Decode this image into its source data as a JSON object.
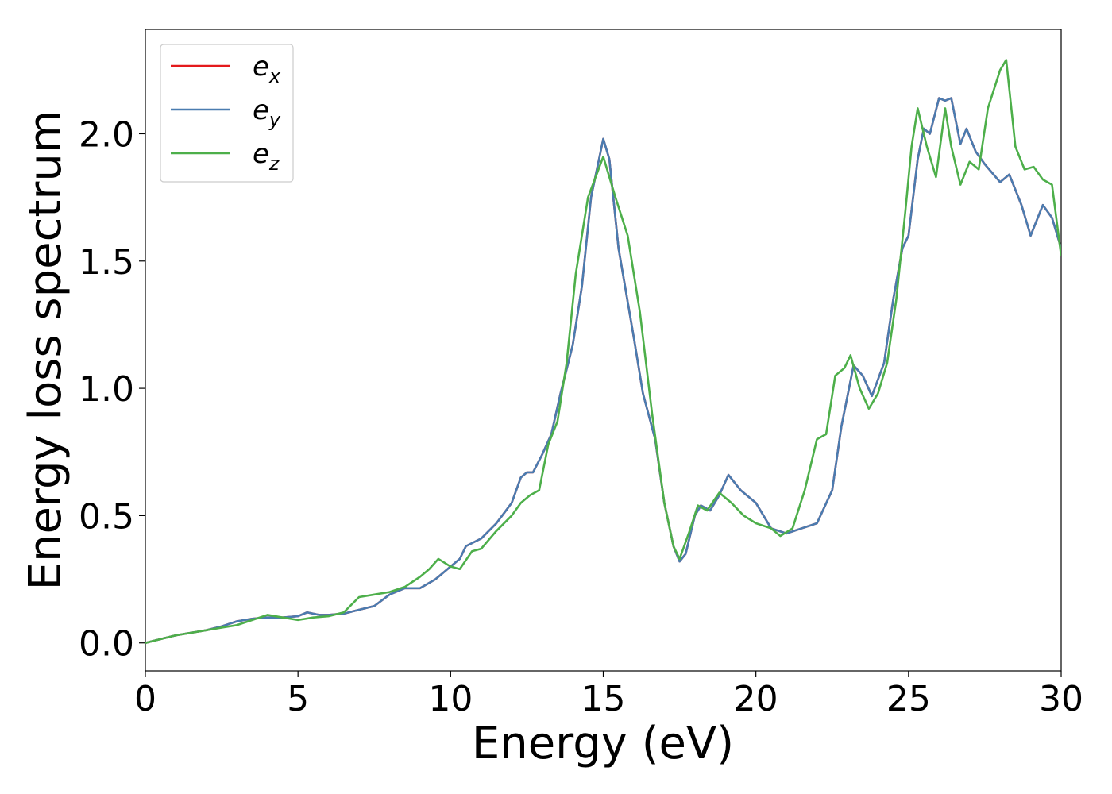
{
  "chart_data": {
    "type": "line",
    "xlabel": "Energy (eV)",
    "ylabel": "Energy loss spectrum",
    "xlim": [
      0,
      30
    ],
    "ylim": [
      -0.11,
      2.41
    ],
    "xticks": [
      0,
      5,
      10,
      15,
      20,
      25,
      30
    ],
    "yticks": [
      {
        "value": 0,
        "label": "0.0"
      },
      {
        "value": 0.5,
        "label": "0.5"
      },
      {
        "value": 1,
        "label": "1.0"
      },
      {
        "value": 1.5,
        "label": "1.5"
      },
      {
        "value": 2,
        "label": "2.0"
      }
    ],
    "legend": "upper left",
    "series": [
      {
        "name": "e_x",
        "color": "#e41a1c",
        "x": [
          0,
          0.5,
          1,
          1.5,
          2,
          2.5,
          3,
          3.5,
          4,
          4.5,
          5,
          5.3,
          5.7,
          6,
          6.5,
          7,
          7.5,
          8,
          8.5,
          9,
          9.5,
          10,
          10.3,
          10.5,
          11,
          11.5,
          12,
          12.3,
          12.5,
          12.7,
          13,
          13.3,
          13.6,
          14,
          14.3,
          14.6,
          15,
          15.2,
          15.5,
          16,
          16.3,
          16.7,
          17,
          17.3,
          17.5,
          17.7,
          18,
          18.2,
          18.5,
          18.8,
          19.1,
          19.5,
          20,
          20.5,
          21,
          21.5,
          22,
          22.5,
          22.8,
          23.2,
          23.5,
          23.8,
          24.2,
          24.5,
          24.8,
          25,
          25.3,
          25.5,
          25.7,
          26,
          26.2,
          26.4,
          26.7,
          26.9,
          27.2,
          27.5,
          28,
          28.3,
          28.7,
          29,
          29.4,
          29.7,
          30
        ],
        "values": [
          0,
          0.015,
          0.03,
          0.04,
          0.05,
          0.065,
          0.085,
          0.095,
          0.1,
          0.1,
          0.105,
          0.12,
          0.11,
          0.11,
          0.115,
          0.13,
          0.145,
          0.19,
          0.215,
          0.215,
          0.25,
          0.3,
          0.33,
          0.38,
          0.41,
          0.47,
          0.55,
          0.65,
          0.67,
          0.67,
          0.74,
          0.82,
          0.98,
          1.17,
          1.4,
          1.75,
          1.98,
          1.9,
          1.55,
          1.2,
          0.98,
          0.8,
          0.55,
          0.38,
          0.32,
          0.35,
          0.5,
          0.54,
          0.52,
          0.58,
          0.66,
          0.6,
          0.55,
          0.45,
          0.43,
          0.45,
          0.47,
          0.6,
          0.85,
          1.09,
          1.05,
          0.97,
          1.1,
          1.35,
          1.55,
          1.6,
          1.9,
          2.02,
          2.0,
          2.14,
          2.13,
          2.14,
          1.96,
          2.02,
          1.93,
          1.88,
          1.81,
          1.84,
          1.72,
          1.6,
          1.72,
          1.67,
          1.55
        ]
      },
      {
        "name": "e_y",
        "color": "#4a7cb0",
        "x": [
          0,
          0.5,
          1,
          1.5,
          2,
          2.5,
          3,
          3.5,
          4,
          4.5,
          5,
          5.3,
          5.7,
          6,
          6.5,
          7,
          7.5,
          8,
          8.5,
          9,
          9.5,
          10,
          10.3,
          10.5,
          11,
          11.5,
          12,
          12.3,
          12.5,
          12.7,
          13,
          13.3,
          13.6,
          14,
          14.3,
          14.6,
          15,
          15.2,
          15.5,
          16,
          16.3,
          16.7,
          17,
          17.3,
          17.5,
          17.7,
          18,
          18.2,
          18.5,
          18.8,
          19.1,
          19.5,
          20,
          20.5,
          21,
          21.5,
          22,
          22.5,
          22.8,
          23.2,
          23.5,
          23.8,
          24.2,
          24.5,
          24.8,
          25,
          25.3,
          25.5,
          25.7,
          26,
          26.2,
          26.4,
          26.7,
          26.9,
          27.2,
          27.5,
          28,
          28.3,
          28.7,
          29,
          29.4,
          29.7,
          30
        ],
        "values": [
          0,
          0.015,
          0.03,
          0.04,
          0.05,
          0.065,
          0.085,
          0.095,
          0.1,
          0.1,
          0.105,
          0.12,
          0.11,
          0.11,
          0.115,
          0.13,
          0.145,
          0.19,
          0.215,
          0.215,
          0.25,
          0.3,
          0.33,
          0.38,
          0.41,
          0.47,
          0.55,
          0.65,
          0.67,
          0.67,
          0.74,
          0.82,
          0.98,
          1.17,
          1.4,
          1.75,
          1.98,
          1.9,
          1.55,
          1.2,
          0.98,
          0.8,
          0.55,
          0.38,
          0.32,
          0.35,
          0.5,
          0.54,
          0.52,
          0.58,
          0.66,
          0.6,
          0.55,
          0.45,
          0.43,
          0.45,
          0.47,
          0.6,
          0.85,
          1.09,
          1.05,
          0.97,
          1.1,
          1.35,
          1.55,
          1.6,
          1.9,
          2.02,
          2.0,
          2.14,
          2.13,
          2.14,
          1.96,
          2.02,
          1.93,
          1.88,
          1.81,
          1.84,
          1.72,
          1.6,
          1.72,
          1.67,
          1.55
        ]
      },
      {
        "name": "e_z",
        "color": "#4daf4a",
        "x": [
          0,
          1,
          2,
          2.5,
          3,
          3.5,
          4,
          4.5,
          5,
          5.5,
          6,
          6.5,
          7,
          7.5,
          8,
          8.5,
          9,
          9.3,
          9.6,
          10,
          10.3,
          10.7,
          11,
          11.5,
          12,
          12.3,
          12.6,
          12.9,
          13.2,
          13.5,
          13.8,
          14.1,
          14.5,
          15,
          15.4,
          15.8,
          16.2,
          16.6,
          17,
          17.3,
          17.5,
          17.8,
          18.1,
          18.4,
          18.8,
          19.2,
          19.6,
          20,
          20.5,
          20.8,
          21.2,
          21.6,
          22,
          22.3,
          22.6,
          22.9,
          23.1,
          23.4,
          23.7,
          24,
          24.3,
          24.6,
          24.9,
          25.1,
          25.3,
          25.6,
          25.9,
          26.2,
          26.4,
          26.7,
          27,
          27.3,
          27.6,
          28,
          28.2,
          28.5,
          28.8,
          29.1,
          29.4,
          29.7,
          30
        ],
        "values": [
          0,
          0.03,
          0.05,
          0.06,
          0.07,
          0.09,
          0.11,
          0.1,
          0.09,
          0.1,
          0.105,
          0.12,
          0.18,
          0.19,
          0.2,
          0.22,
          0.26,
          0.29,
          0.33,
          0.3,
          0.29,
          0.36,
          0.37,
          0.44,
          0.5,
          0.55,
          0.58,
          0.6,
          0.78,
          0.87,
          1.1,
          1.45,
          1.75,
          1.91,
          1.75,
          1.6,
          1.3,
          0.9,
          0.55,
          0.38,
          0.33,
          0.43,
          0.54,
          0.52,
          0.59,
          0.55,
          0.5,
          0.47,
          0.45,
          0.42,
          0.45,
          0.6,
          0.8,
          0.82,
          1.05,
          1.08,
          1.13,
          1.0,
          0.92,
          0.98,
          1.1,
          1.35,
          1.7,
          1.95,
          2.1,
          1.95,
          1.83,
          2.1,
          1.95,
          1.8,
          1.89,
          1.86,
          2.1,
          2.25,
          2.29,
          1.95,
          1.86,
          1.87,
          1.82,
          1.8,
          1.52
        ]
      }
    ]
  }
}
